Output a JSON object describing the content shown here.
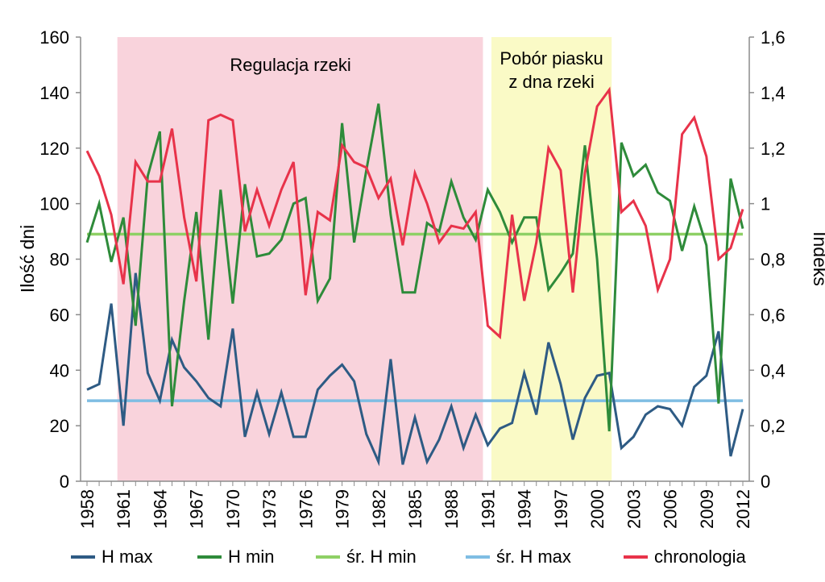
{
  "chart_data": {
    "type": "line",
    "title": "",
    "ylabel": "Ilość dni",
    "y2label": "Indeks",
    "ylim": [
      0,
      160
    ],
    "y2lim": [
      0,
      1.6
    ],
    "yticks": [
      "0",
      "20",
      "40",
      "60",
      "80",
      "100",
      "120",
      "140",
      "160"
    ],
    "y2ticks": [
      "0",
      "0,2",
      "0,4",
      "0,6",
      "0,8",
      "1",
      "1,2",
      "1,4",
      "1,6"
    ],
    "xticks": [
      "1958",
      "1961",
      "1964",
      "1967",
      "1970",
      "1973",
      "1976",
      "1979",
      "1982",
      "1985",
      "1988",
      "1991",
      "1994",
      "1997",
      "2000",
      "2003",
      "2006",
      "2009",
      "2012"
    ],
    "x": [
      1958,
      1959,
      1960,
      1961,
      1962,
      1963,
      1964,
      1965,
      1966,
      1967,
      1968,
      1969,
      1970,
      1971,
      1972,
      1973,
      1974,
      1975,
      1976,
      1977,
      1978,
      1979,
      1980,
      1981,
      1982,
      1983,
      1984,
      1985,
      1986,
      1987,
      1988,
      1989,
      1990,
      1991,
      1992,
      1993,
      1994,
      1995,
      1996,
      1997,
      1998,
      1999,
      2000,
      2001,
      2002,
      2003,
      2004,
      2005,
      2006,
      2007,
      2008,
      2009,
      2010,
      2011,
      2012
    ],
    "grid": false,
    "legend_position": "bottom",
    "regions": [
      {
        "label": "Regulacja rzeki",
        "start": 1960.5,
        "end": 1990.6,
        "color": "#f9d3dc"
      },
      {
        "label": "Pobór piasku z dna rzeki",
        "label_lines": [
          "Pobór piasku",
          "z dna rzeki"
        ],
        "start": 1991.3,
        "end": 2001.2,
        "color": "#fafac6"
      }
    ],
    "series": [
      {
        "name": "H max",
        "axis": "left",
        "color": "#2e5b84",
        "values": [
          33,
          35,
          64,
          20,
          75,
          39,
          29,
          51,
          41,
          36,
          30,
          27,
          55,
          16,
          32,
          17,
          32,
          16,
          16,
          33,
          38,
          42,
          36,
          17,
          7,
          44,
          6,
          23,
          7,
          15,
          27,
          12,
          24,
          13,
          19,
          21,
          39,
          24,
          50,
          35,
          15,
          30,
          38,
          39,
          12,
          16,
          24,
          27,
          26,
          20,
          34,
          38,
          54,
          9,
          26
        ]
      },
      {
        "name": "H min",
        "axis": "left",
        "color": "#2e8b3a",
        "values": [
          86,
          100,
          79,
          95,
          56,
          110,
          126,
          27,
          65,
          97,
          51,
          105,
          64,
          107,
          81,
          82,
          87,
          100,
          102,
          65,
          73,
          129,
          86,
          112,
          136,
          96,
          68,
          68,
          93,
          90,
          108,
          95,
          87,
          105,
          97,
          86,
          95,
          95,
          69,
          75,
          82,
          121,
          80,
          18,
          122,
          110,
          114,
          104,
          101,
          83,
          99,
          85,
          28,
          109,
          91
        ]
      },
      {
        "name": "śr. H min",
        "axis": "left",
        "color": "#8ed065",
        "values": [
          89,
          89,
          89,
          89,
          89,
          89,
          89,
          89,
          89,
          89,
          89,
          89,
          89,
          89,
          89,
          89,
          89,
          89,
          89,
          89,
          89,
          89,
          89,
          89,
          89,
          89,
          89,
          89,
          89,
          89,
          89,
          89,
          89,
          89,
          89,
          89,
          89,
          89,
          89,
          89,
          89,
          89,
          89,
          89,
          89,
          89,
          89,
          89,
          89,
          89,
          89,
          89,
          89,
          89,
          89
        ]
      },
      {
        "name": "śr. H max",
        "axis": "left",
        "color": "#7fbde3",
        "values": [
          29,
          29,
          29,
          29,
          29,
          29,
          29,
          29,
          29,
          29,
          29,
          29,
          29,
          29,
          29,
          29,
          29,
          29,
          29,
          29,
          29,
          29,
          29,
          29,
          29,
          29,
          29,
          29,
          29,
          29,
          29,
          29,
          29,
          29,
          29,
          29,
          29,
          29,
          29,
          29,
          29,
          29,
          29,
          29,
          29,
          29,
          29,
          29,
          29,
          29,
          29,
          29,
          29,
          29,
          29
        ]
      },
      {
        "name": "chronologia",
        "axis": "right",
        "color": "#e8334a",
        "values": [
          1.19,
          1.1,
          0.96,
          0.71,
          1.15,
          1.08,
          1.08,
          1.27,
          0.95,
          0.72,
          1.3,
          1.32,
          1.3,
          0.9,
          1.05,
          0.92,
          1.05,
          1.15,
          0.67,
          0.97,
          0.94,
          1.21,
          1.15,
          1.13,
          1.02,
          1.09,
          0.85,
          1.11,
          1.0,
          0.86,
          0.92,
          0.91,
          0.97,
          0.56,
          0.52,
          0.96,
          0.65,
          0.86,
          1.2,
          1.12,
          0.68,
          1.11,
          1.35,
          1.41,
          0.97,
          1.01,
          0.92,
          0.69,
          0.8,
          1.25,
          1.31,
          1.17,
          0.8,
          0.84,
          0.98
        ]
      }
    ]
  }
}
